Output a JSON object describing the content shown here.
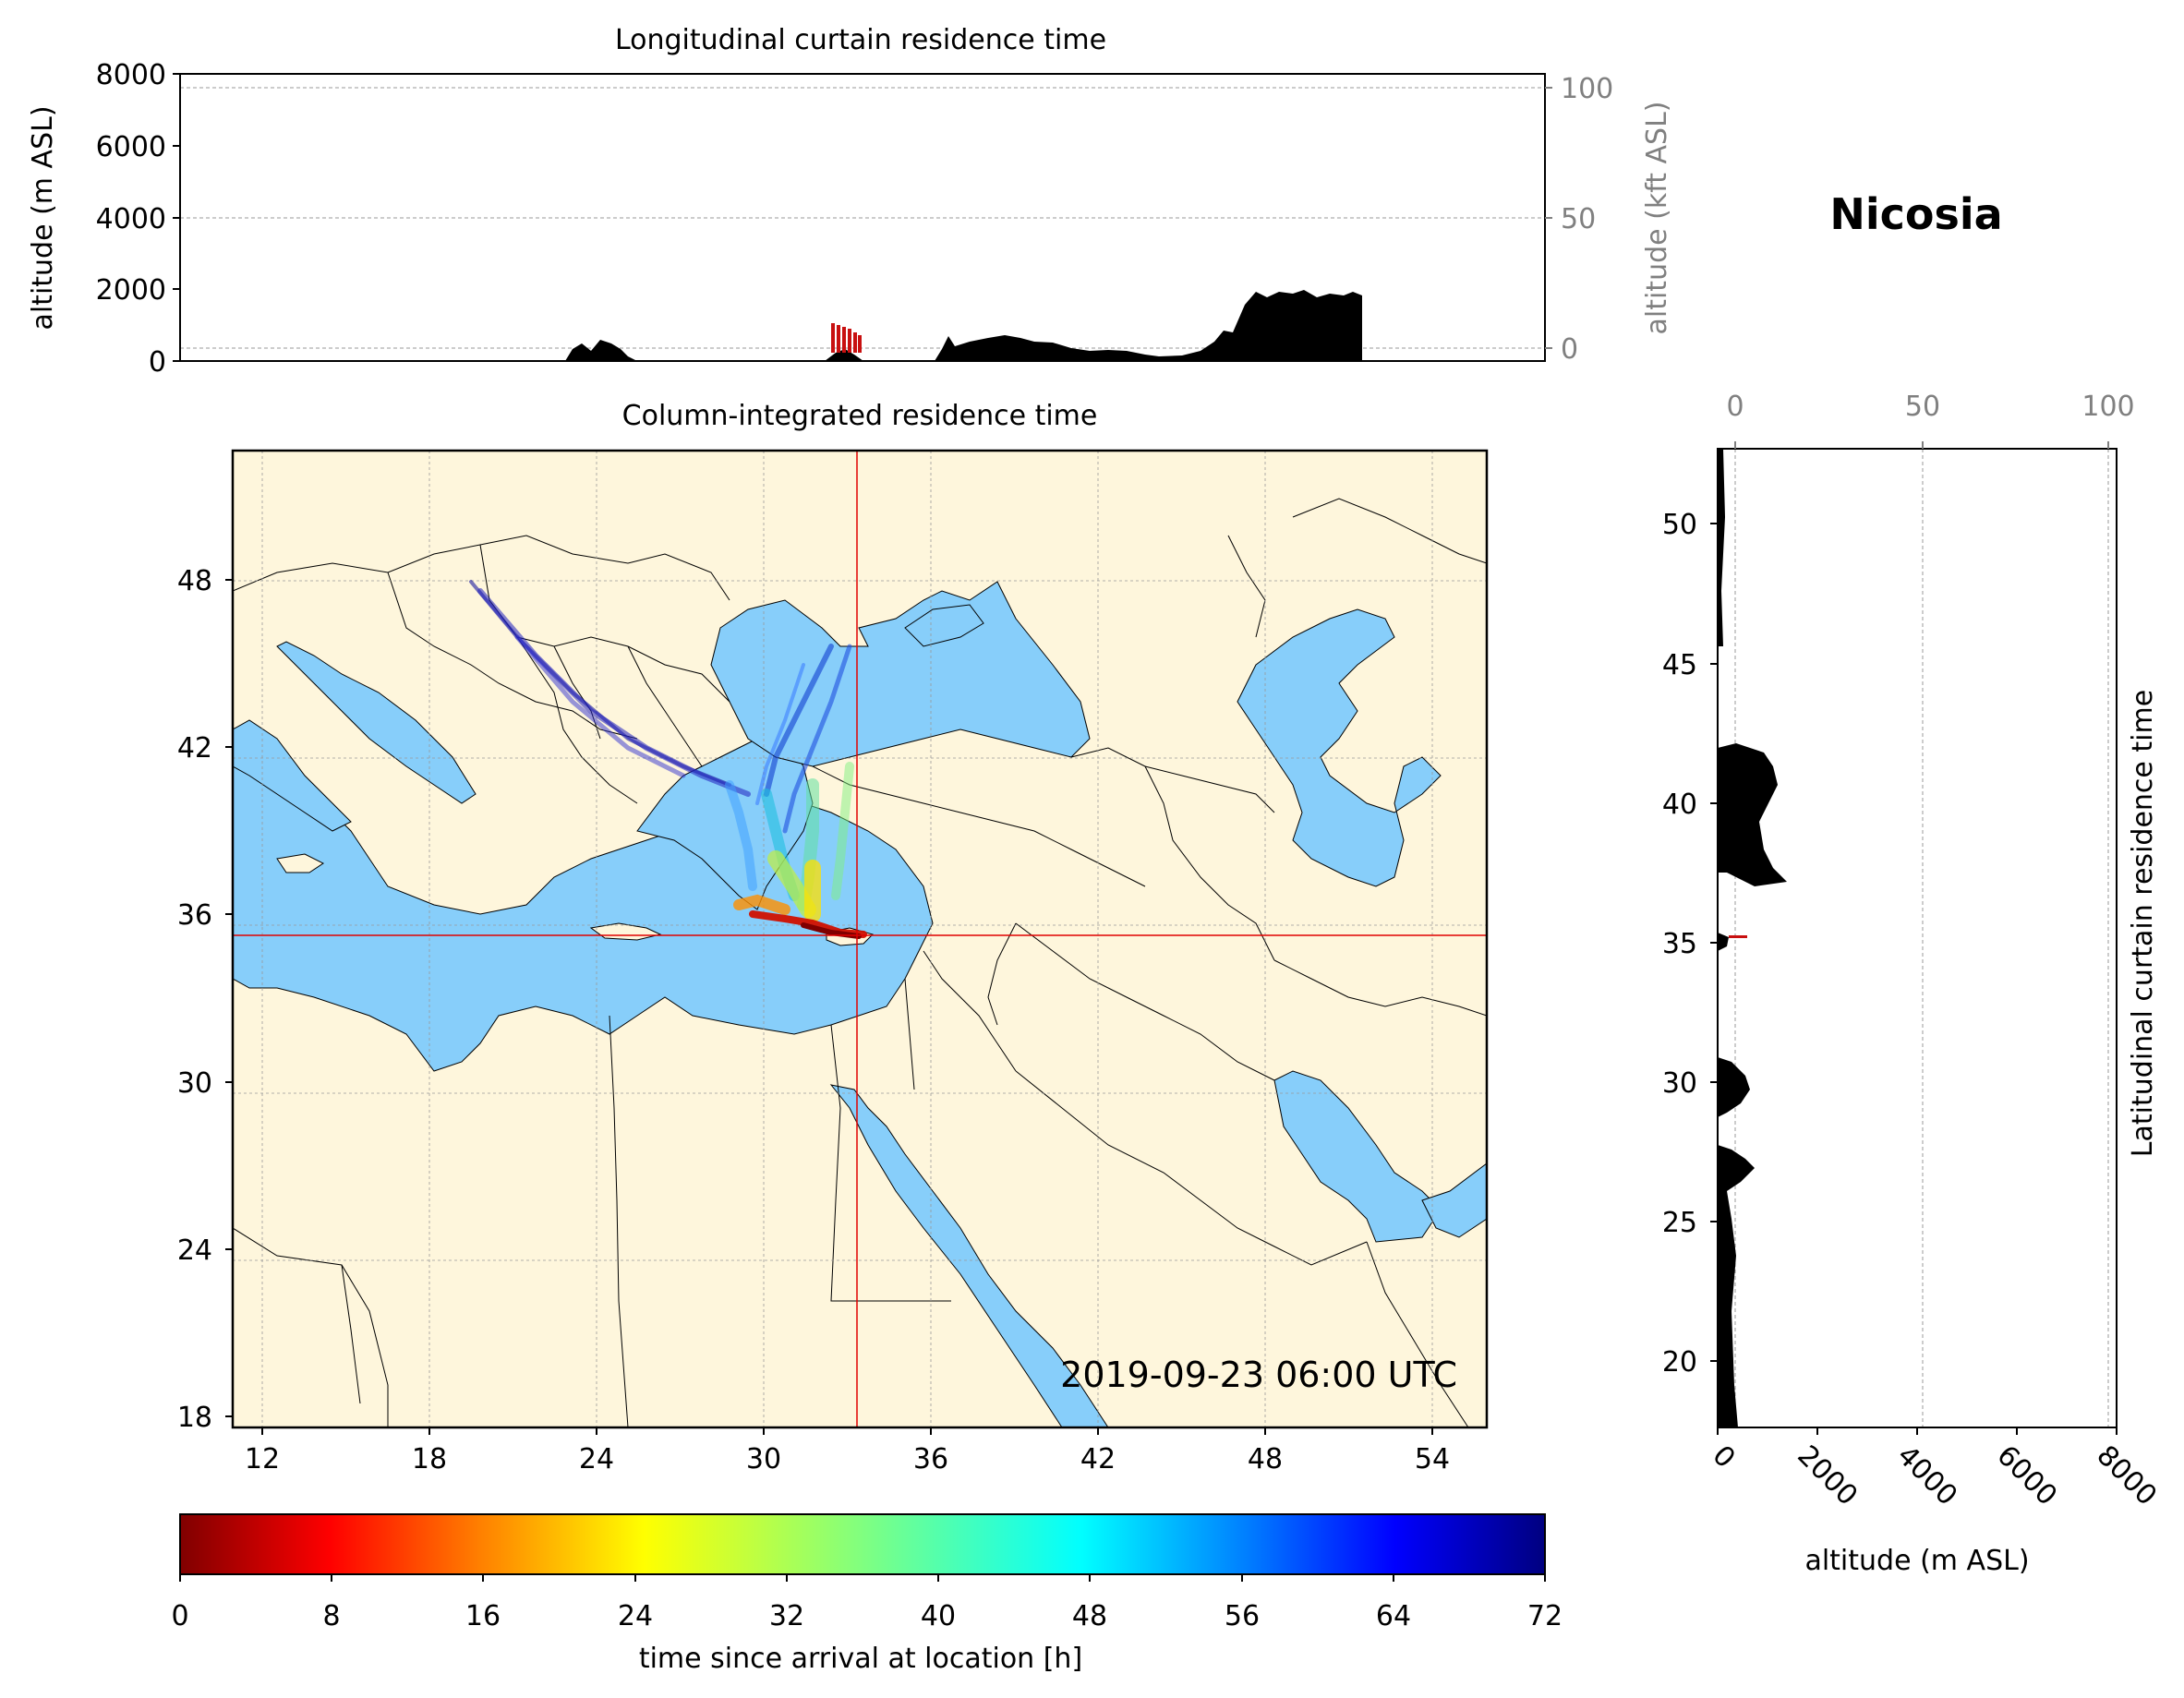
{
  "location_title": "Nicosia",
  "timestamp": "2019-09-23 06:00 UTC",
  "colors": {
    "land": "#fef6dc",
    "sea": "#87cefa",
    "border": "#000000",
    "crosshair": "#e00000",
    "terrain": "#000000",
    "secondary_axis": "#808080"
  },
  "top_panel": {
    "title": "Longitudinal curtain residence time",
    "ylabel": "altitude (m ASL)",
    "y_ticks": [
      "0",
      "2000",
      "4000",
      "6000",
      "8000"
    ],
    "y2label": "altitude (kft ASL)",
    "y2_ticks": [
      "0",
      "50",
      "100"
    ],
    "ylim": [
      0,
      8000
    ]
  },
  "map_panel": {
    "title": "Column-integrated residence time",
    "x_ticks": [
      "12",
      "18",
      "24",
      "30",
      "36",
      "42",
      "48",
      "54"
    ],
    "y_ticks": [
      "18",
      "24",
      "30",
      "36",
      "42",
      "48"
    ],
    "lon_range": [
      10.9,
      55.9
    ],
    "lat_range": [
      18,
      53
    ],
    "crosshair": {
      "lon": 33.4,
      "lat": 35.2
    }
  },
  "side_panel": {
    "ylabel": "Latitudinal curtain residence time",
    "y_ticks": [
      "20",
      "25",
      "30",
      "35",
      "40",
      "45",
      "50"
    ],
    "xlabel": "altitude (m ASL)",
    "x_ticks": [
      "0",
      "2000",
      "4000",
      "6000",
      "8000"
    ],
    "x2_ticks": [
      "0",
      "50",
      "100"
    ],
    "xlim": [
      0,
      8000
    ]
  },
  "colorbar": {
    "label": "time since arrival at location [h]",
    "ticks": [
      "0",
      "8",
      "16",
      "24",
      "32",
      "40",
      "48",
      "56",
      "64",
      "72"
    ],
    "range": [
      0,
      72
    ],
    "colormap": "jet_r"
  }
}
